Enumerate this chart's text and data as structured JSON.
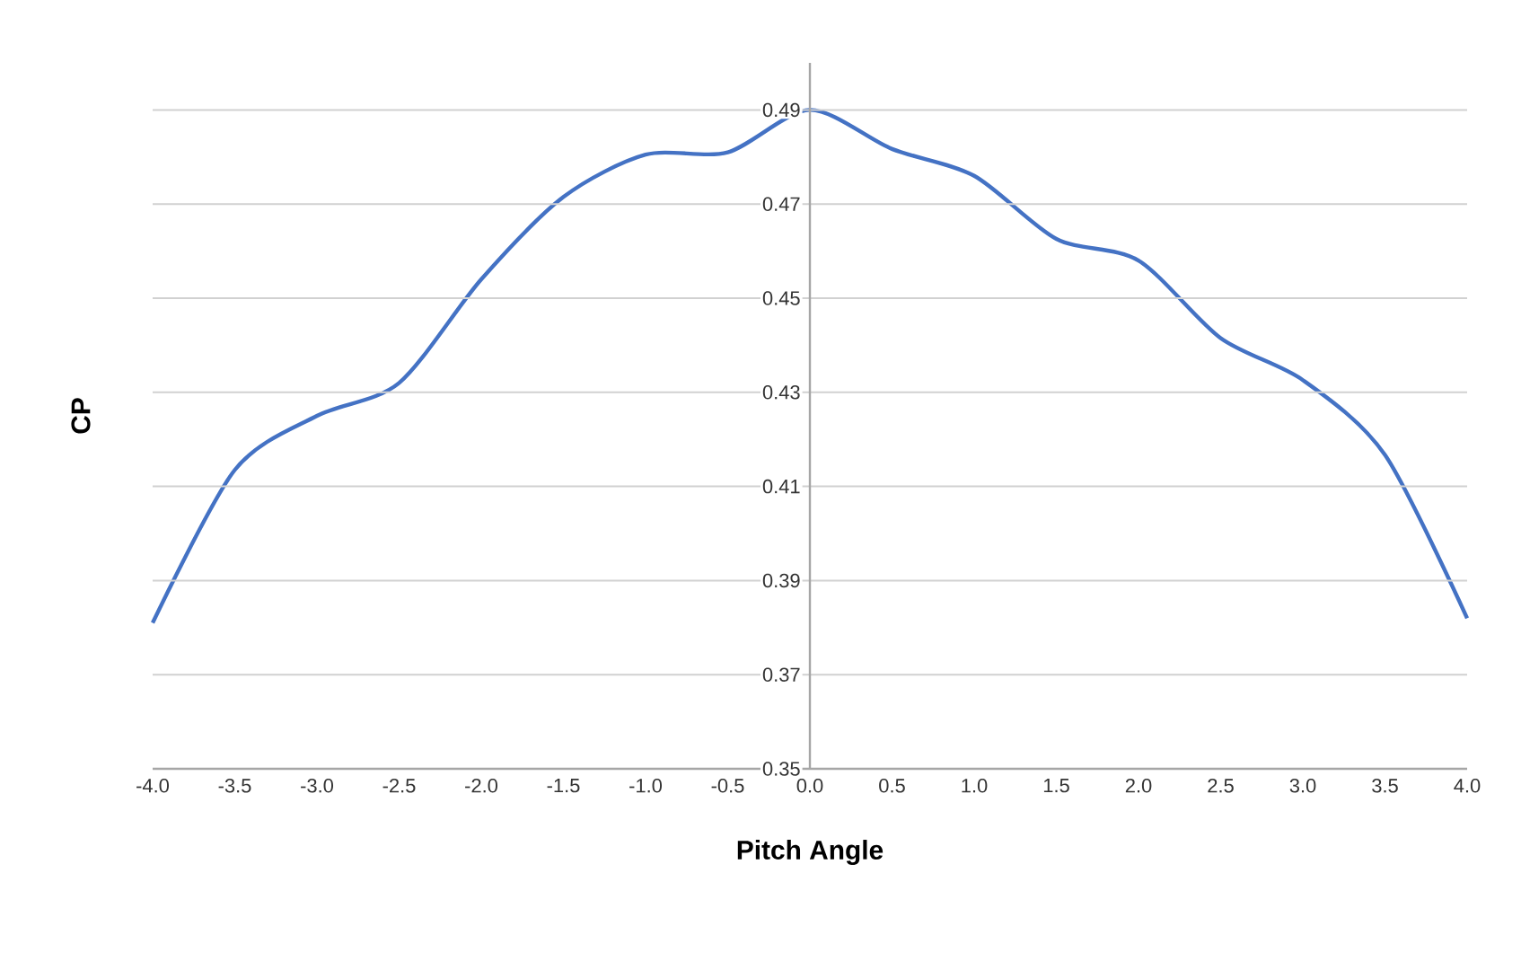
{
  "chart_data": {
    "type": "line",
    "xlabel": "Pitch Angle",
    "ylabel": "CP",
    "x": [
      -4.0,
      -3.5,
      -3.0,
      -2.5,
      -2.0,
      -1.5,
      -1.0,
      -0.5,
      0.0,
      0.5,
      1.0,
      1.5,
      2.0,
      2.5,
      3.0,
      3.5,
      4.0
    ],
    "series": [
      {
        "color": "#4472c4",
        "values": [
          0.381,
          0.4135,
          0.425,
          0.432,
          0.454,
          0.4715,
          0.4805,
          0.481,
          0.49,
          0.4817,
          0.476,
          0.4626,
          0.458,
          0.4415,
          0.4326,
          0.4167,
          0.382
        ]
      }
    ],
    "xlim": [
      -4.0,
      4.0
    ],
    "ylim": [
      0.35,
      0.5
    ],
    "xticks": [
      {
        "value": -4.0,
        "label": "-4.0"
      },
      {
        "value": -3.5,
        "label": "-3.5"
      },
      {
        "value": -3.0,
        "label": "-3.0"
      },
      {
        "value": -2.5,
        "label": "-2.5"
      },
      {
        "value": -2.0,
        "label": "-2.0"
      },
      {
        "value": -1.5,
        "label": "-1.5"
      },
      {
        "value": -1.0,
        "label": "-1.0"
      },
      {
        "value": -0.5,
        "label": "-0.5"
      },
      {
        "value": 0.0,
        "label": "0.0"
      },
      {
        "value": 0.5,
        "label": "0.5"
      },
      {
        "value": 1.0,
        "label": "1.0"
      },
      {
        "value": 1.5,
        "label": "1.5"
      },
      {
        "value": 2.0,
        "label": "2.0"
      },
      {
        "value": 2.5,
        "label": "2.5"
      },
      {
        "value": 3.0,
        "label": "3.0"
      },
      {
        "value": 3.5,
        "label": "3.5"
      },
      {
        "value": 4.0,
        "label": "4.0"
      }
    ],
    "yticks": [
      0.35,
      0.37,
      0.39,
      0.41,
      0.43,
      0.45,
      0.47,
      0.49
    ],
    "grid": "y",
    "legend": false,
    "marker": "none",
    "line_style": "solid"
  }
}
